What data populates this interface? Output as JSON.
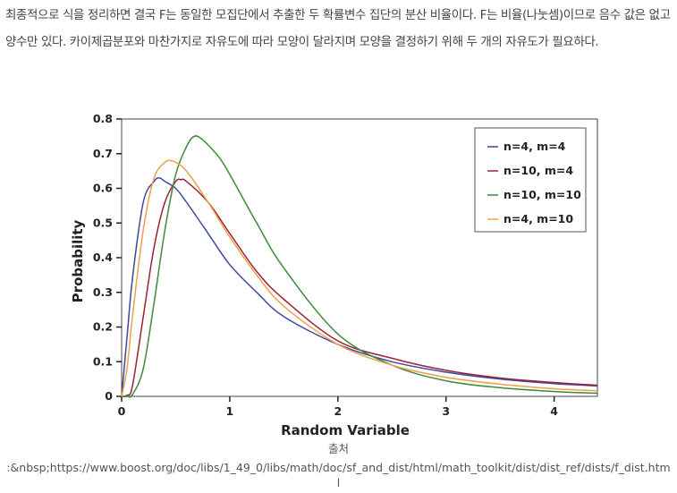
{
  "article": {
    "paragraph": "최종적으로 식을 정리하면 결국 F는 동일한 모집단에서 추출한 두 확률변수 집단의 분산 비율이다. F는 비율(나눗셈)이므로 음수 값은 없고 양수만 있다. 카이제곱분포와 마찬가지로 자유도에 따라 모양이 달라지며 모양을 결정하기 위해 두 개의 자유도가 필요하다."
  },
  "caption": {
    "label": "출처",
    "url": ":&nbsp;https://www.boost.org/doc/libs/1_49_0/libs/math/doc/sf_and_dist/html/math_toolkit/dist/dist_ref/dists/f_dist.html"
  },
  "chart_data": {
    "type": "line",
    "title": "",
    "xlabel": "Random Variable",
    "ylabel": "Probability",
    "xlim": [
      0,
      4.4
    ],
    "ylim": [
      0,
      0.8
    ],
    "x_ticks": [
      "0",
      "1",
      "2",
      "3",
      "4"
    ],
    "y_ticks": [
      "0",
      "0.1",
      "0.2",
      "0.3",
      "0.4",
      "0.5",
      "0.6",
      "0.7",
      "0.8"
    ],
    "legend_position": "top-right",
    "grid": false,
    "series": [
      {
        "name": "n=4, m=4",
        "color": "#3b48a0",
        "x": [
          0,
          0.05,
          0.1,
          0.2,
          0.3,
          0.35,
          0.4,
          0.5,
          0.6,
          0.8,
          1.0,
          1.25,
          1.5,
          2.0,
          2.5,
          3.0,
          3.5,
          4.0,
          4.4
        ],
        "y": [
          0,
          0.17,
          0.34,
          0.56,
          0.62,
          0.63,
          0.62,
          0.6,
          0.56,
          0.47,
          0.38,
          0.3,
          0.23,
          0.15,
          0.1,
          0.07,
          0.05,
          0.037,
          0.03
        ]
      },
      {
        "name": "n=10, m=4",
        "color": "#9b2235",
        "x": [
          0,
          0.05,
          0.1,
          0.2,
          0.3,
          0.4,
          0.5,
          0.55,
          0.6,
          0.8,
          1.0,
          1.25,
          1.5,
          2.0,
          2.5,
          3.0,
          3.5,
          4.0,
          4.4
        ],
        "y": [
          0,
          0.003,
          0.03,
          0.23,
          0.43,
          0.56,
          0.62,
          0.625,
          0.62,
          0.56,
          0.47,
          0.36,
          0.28,
          0.16,
          0.11,
          0.075,
          0.053,
          0.04,
          0.032
        ]
      },
      {
        "name": "n=10, m=10",
        "color": "#3f8a3a",
        "x": [
          0,
          0.05,
          0.1,
          0.2,
          0.3,
          0.4,
          0.5,
          0.6,
          0.67,
          0.75,
          0.9,
          1.0,
          1.25,
          1.5,
          2.0,
          2.5,
          3.0,
          3.5,
          4.0,
          4.4
        ],
        "y": [
          0,
          0.0,
          0.005,
          0.08,
          0.27,
          0.48,
          0.64,
          0.72,
          0.75,
          0.74,
          0.69,
          0.64,
          0.5,
          0.37,
          0.18,
          0.09,
          0.045,
          0.025,
          0.014,
          0.009
        ]
      },
      {
        "name": "n=4, m=10",
        "color": "#f0a04a",
        "x": [
          0,
          0.05,
          0.1,
          0.2,
          0.3,
          0.4,
          0.45,
          0.5,
          0.6,
          0.8,
          1.0,
          1.25,
          1.5,
          2.0,
          2.5,
          3.0,
          3.5,
          4.0,
          4.4
        ],
        "y": [
          0,
          0.08,
          0.23,
          0.48,
          0.63,
          0.675,
          0.68,
          0.675,
          0.65,
          0.56,
          0.46,
          0.35,
          0.26,
          0.15,
          0.09,
          0.055,
          0.035,
          0.022,
          0.016
        ]
      }
    ]
  }
}
